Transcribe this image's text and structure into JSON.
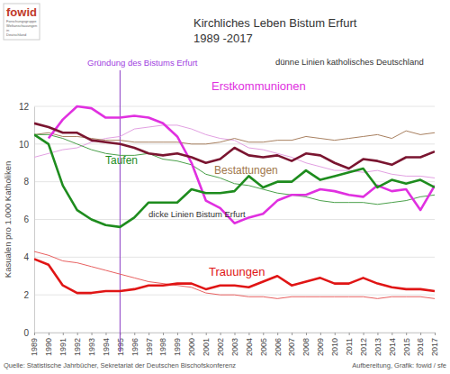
{
  "chart_data": {
    "type": "line",
    "title": "Kirchliches Leben Bistum Erfurt",
    "subtitle": "1989 -2017",
    "y_label": "Kasualen pro 1.000 Katholiken",
    "source": "Quelle: Statistische Jahrbücher, Sekretariat der Deutschen Bischofskonferenz",
    "credit": "Aufbereitung, Grafik: fowid / sfe",
    "logo": {
      "text": "fowid",
      "subtitle": "Forschungsgruppe Weltanschauungen in Deutschland"
    },
    "annotations": [
      {
        "text": "Gründung des Bistums Erfurt",
        "x": 1995
      },
      {
        "text": "dünne Linien katholisches Deutschland"
      },
      {
        "text": "dicke Linien Bistum Erfurt"
      }
    ],
    "x": [
      1989,
      1990,
      1991,
      1992,
      1993,
      1994,
      1995,
      1996,
      1997,
      1998,
      1999,
      2000,
      2001,
      2002,
      2003,
      2004,
      2005,
      2006,
      2007,
      2008,
      2009,
      2010,
      2011,
      2012,
      2013,
      2014,
      2015,
      2016,
      2017
    ],
    "xlim": [
      1989,
      2017
    ],
    "xticks": [
      1989,
      1990,
      1991,
      1992,
      1993,
      1994,
      1995,
      1996,
      1997,
      1998,
      1999,
      2000,
      2001,
      2002,
      2003,
      2004,
      2005,
      2006,
      2007,
      2008,
      2009,
      2010,
      2011,
      2012,
      2013,
      2014,
      2015,
      2016,
      2017
    ],
    "ylim": [
      0,
      12
    ],
    "yticks": [
      0,
      2,
      4,
      6,
      8,
      10,
      12
    ],
    "grid": true,
    "series": [
      {
        "color": "#e2a0e2",
        "line_style": "thin",
        "values": [
          9.3,
          9.5,
          9.7,
          9.8,
          10.1,
          10.3,
          10.4,
          10.8,
          10.9,
          11.0,
          11.0,
          10.8,
          10.5,
          10.3,
          10.2,
          9.8,
          9.7,
          9.5,
          9.3,
          9.0,
          8.8,
          8.6,
          8.6,
          8.5,
          8.6,
          8.4,
          8.3,
          8.3,
          8.2
        ]
      },
      {
        "color": "#a88060",
        "line_style": "thin",
        "values": [
          10.5,
          10.6,
          10.4,
          10.4,
          10.3,
          10.2,
          10.2,
          10.1,
          10.1,
          10.1,
          10.1,
          10.0,
          10.0,
          10.1,
          10.3,
          10.1,
          10.1,
          10.2,
          10.2,
          10.4,
          10.3,
          10.2,
          10.3,
          10.4,
          10.5,
          10.3,
          10.7,
          10.5,
          10.6
        ]
      },
      {
        "color": "#4aa04a",
        "line_style": "thin",
        "values": [
          10.5,
          10.5,
          10.3,
          10.0,
          9.7,
          9.5,
          9.4,
          9.4,
          9.5,
          9.2,
          9.1,
          8.9,
          8.4,
          8.2,
          7.9,
          7.8,
          7.6,
          7.4,
          7.3,
          7.2,
          7.0,
          6.9,
          6.9,
          6.9,
          6.8,
          6.9,
          7.0,
          7.2,
          7.3
        ]
      },
      {
        "color": "#e86060",
        "line_style": "thin",
        "values": [
          4.3,
          4.1,
          3.8,
          3.7,
          3.5,
          3.3,
          3.1,
          2.9,
          2.7,
          2.6,
          2.5,
          2.4,
          2.1,
          2.0,
          2.0,
          1.9,
          1.9,
          1.8,
          1.9,
          1.9,
          1.9,
          1.9,
          1.9,
          1.9,
          1.8,
          1.9,
          1.9,
          1.9,
          1.8
        ]
      },
      {
        "name": "Erstkommunionen",
        "color": "#e030e0",
        "line_style": "thick",
        "values": [
          null,
          10.3,
          11.3,
          12.0,
          11.9,
          11.4,
          11.4,
          11.5,
          11.4,
          11.1,
          10.4,
          9.0,
          7.0,
          6.6,
          5.8,
          6.1,
          6.3,
          7.0,
          7.3,
          7.3,
          7.6,
          7.5,
          7.3,
          7.2,
          7.8,
          7.5,
          7.6,
          6.5,
          7.8
        ]
      },
      {
        "name": "Bestattungen",
        "color": "#7a1530",
        "line_style": "thick",
        "values": [
          11.1,
          10.9,
          10.6,
          10.6,
          10.2,
          10.1,
          10.0,
          9.8,
          9.5,
          9.4,
          9.5,
          9.3,
          9.0,
          9.2,
          9.8,
          9.4,
          9.3,
          9.4,
          9.1,
          9.5,
          9.4,
          9.0,
          8.7,
          9.2,
          9.1,
          8.9,
          9.3,
          9.3,
          9.6
        ]
      },
      {
        "name": "Taufen",
        "color": "#1e8c1e",
        "line_style": "thick",
        "values": [
          10.5,
          10.0,
          7.8,
          6.5,
          6.0,
          5.7,
          5.6,
          6.1,
          6.9,
          6.9,
          6.9,
          7.6,
          7.4,
          7.4,
          7.5,
          8.3,
          7.7,
          8.0,
          8.0,
          8.6,
          8.1,
          8.3,
          8.5,
          8.7,
          7.7,
          8.1,
          7.9,
          8.1,
          7.7
        ]
      },
      {
        "name": "Trauungen",
        "color": "#e01515",
        "line_style": "thick",
        "values": [
          3.9,
          3.6,
          2.5,
          2.1,
          2.1,
          2.2,
          2.2,
          2.3,
          2.5,
          2.5,
          2.6,
          2.6,
          2.3,
          2.5,
          2.5,
          2.4,
          2.7,
          3.0,
          2.5,
          2.7,
          2.9,
          2.6,
          2.6,
          2.9,
          2.6,
          2.4,
          2.3,
          2.3,
          2.2
        ]
      }
    ]
  }
}
